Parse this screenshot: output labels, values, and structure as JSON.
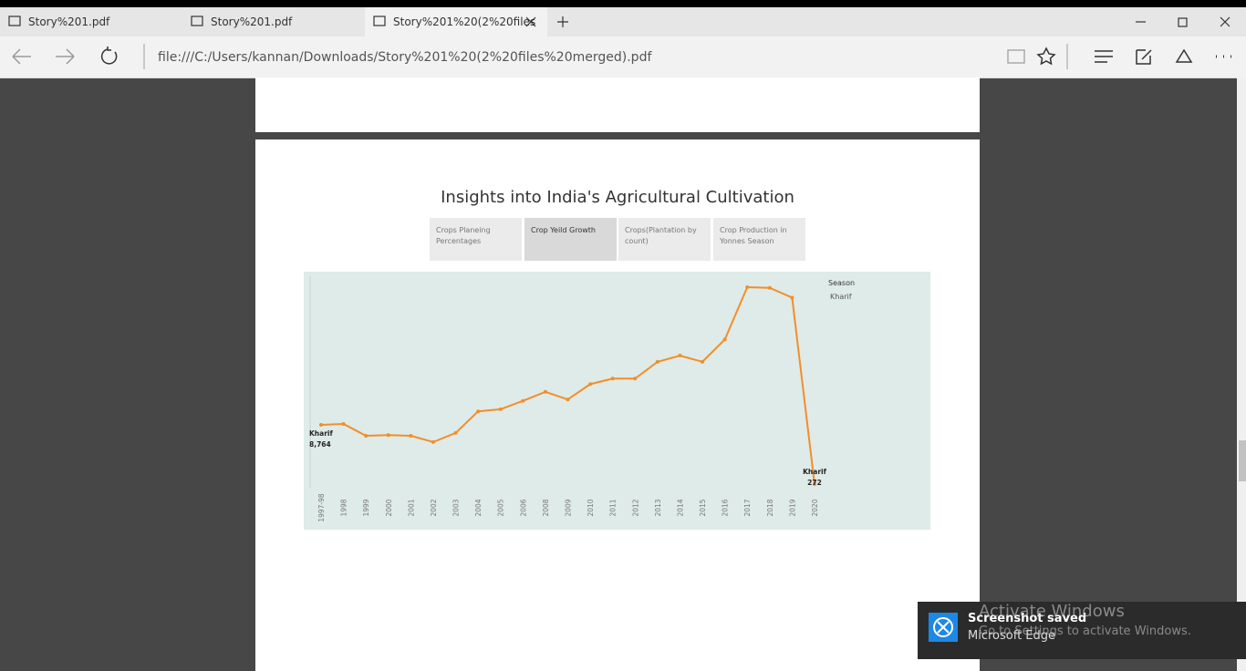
{
  "browser": {
    "tabs": [
      "Story%201.pdf",
      "Story%201.pdf",
      "Story%201%20(2%20files"
    ],
    "address": "file:///C:/Users/kannan/Downloads/Story%201%20(2%20files%20merged).pdf"
  },
  "story": {
    "title": "Insights into India's Agricultural Cultivation",
    "tabs": [
      "Crops Planeing Percentages",
      "Crop Yeild Growth",
      "Crops(Plantation by count)",
      "Crop Production in Yonnes Season"
    ],
    "active_tab": 1
  },
  "chart_data": {
    "type": "line",
    "legend_title": "Season",
    "categories": [
      "1997-98",
      "1998",
      "1999",
      "2000",
      "2001",
      "2002",
      "2003",
      "2004",
      "2005",
      "2006",
      "2008",
      "2009",
      "2010",
      "2011",
      "2012",
      "2013",
      "2014",
      "2015",
      "2016",
      "2017",
      "2018",
      "2019",
      "2020"
    ],
    "series": [
      {
        "name": "Kharif",
        "color": "#f28e2b",
        "values": [
          8764,
          8900,
          7200,
          7300,
          7200,
          6300,
          7600,
          10700,
          11000,
          12200,
          13500,
          12400,
          14600,
          15400,
          15400,
          17800,
          18700,
          17800,
          21000,
          28500,
          28400,
          27000,
          272
        ],
        "value_labels": [
          "8,764",
          null,
          null,
          null,
          null,
          null,
          null,
          null,
          null,
          null,
          null,
          null,
          null,
          null,
          null,
          null,
          null,
          null,
          null,
          null,
          null,
          null,
          "272"
        ]
      }
    ]
  },
  "notification": {
    "title": "Screenshot saved",
    "app": "Microsoft Edge"
  },
  "watermark": {
    "title": "Activate Windows",
    "text": "Go to Settings to activate Windows."
  }
}
